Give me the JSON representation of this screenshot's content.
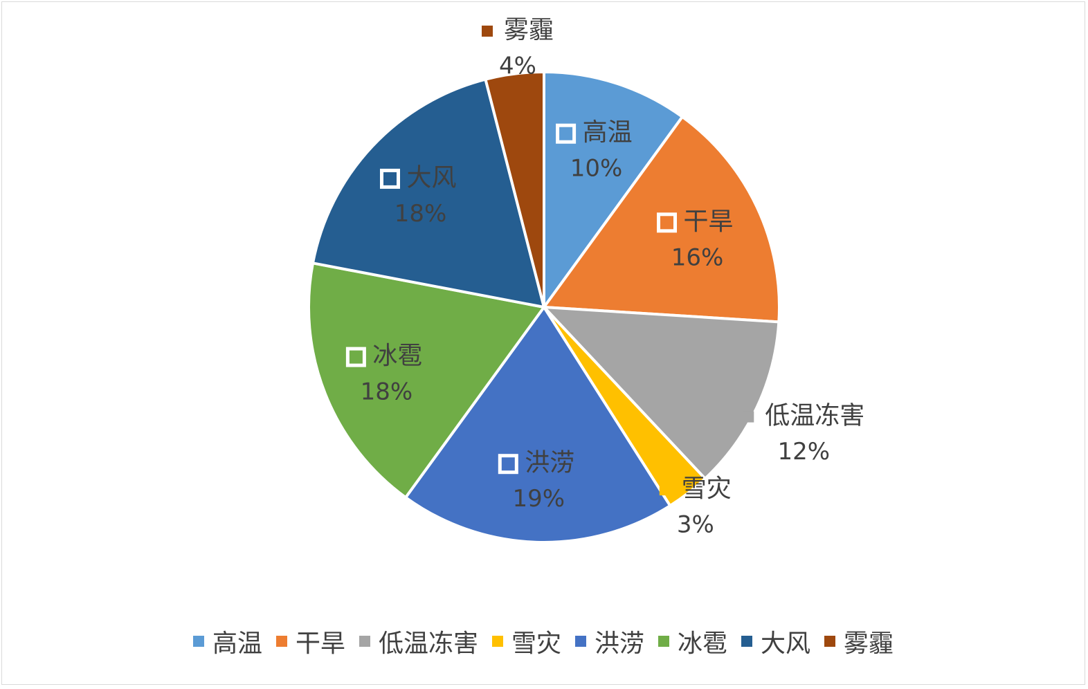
{
  "chart_data": {
    "type": "pie",
    "categories": [
      "高温",
      "干旱",
      "低温冻害",
      "雪灾",
      "洪涝",
      "冰雹",
      "大风",
      "雾霾"
    ],
    "values": [
      10,
      16,
      12,
      3,
      19,
      18,
      18,
      4
    ],
    "labels": [
      "10%",
      "16%",
      "12%",
      "3%",
      "19%",
      "18%",
      "18%",
      "4%"
    ],
    "colors": [
      "#5b9bd5",
      "#ed7d31",
      "#a5a5a5",
      "#ffc000",
      "#4472c4",
      "#70ad47",
      "#255e91",
      "#9e480e"
    ],
    "legend_position": "bottom",
    "start_angle_deg": 0,
    "direction": "clockwise"
  }
}
